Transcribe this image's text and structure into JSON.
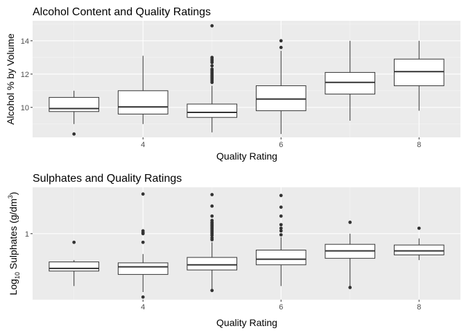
{
  "chart_data": [
    {
      "type": "boxplot",
      "title": "Alcohol Content and Quality Ratings",
      "xlabel": "Quality Rating",
      "ylabel": "Alcohol % by Volume",
      "xlim": [
        2.4,
        8.6
      ],
      "ylim": [
        8.2,
        15.2
      ],
      "x_ticks": [
        4,
        6,
        8
      ],
      "y_ticks": [
        10,
        12,
        14
      ],
      "grid": true,
      "boxes": [
        {
          "x": 3,
          "min": 9.0,
          "q1": 9.75,
          "median": 9.93,
          "q3": 10.6,
          "max": 11.0,
          "outliers": [
            8.4
          ]
        },
        {
          "x": 4,
          "min": 9.0,
          "q1": 9.6,
          "median": 10.03,
          "q3": 11.0,
          "max": 13.1,
          "outliers": []
        },
        {
          "x": 5,
          "min": 8.5,
          "q1": 9.4,
          "median": 9.7,
          "q3": 10.2,
          "max": 11.3,
          "outliers": [
            11.5,
            11.6,
            11.7,
            11.8,
            11.9,
            12.0,
            12.1,
            12.2,
            12.3,
            12.5,
            12.7,
            12.8,
            12.9,
            13.0,
            14.9
          ]
        },
        {
          "x": 6,
          "min": 8.4,
          "q1": 9.8,
          "median": 10.5,
          "q3": 11.3,
          "max": 13.4,
          "outliers": [
            13.6,
            14.0
          ]
        },
        {
          "x": 7,
          "min": 9.2,
          "q1": 10.8,
          "median": 11.5,
          "q3": 12.1,
          "max": 14.0,
          "outliers": []
        },
        {
          "x": 8,
          "min": 9.8,
          "q1": 11.3,
          "median": 12.15,
          "q3": 12.9,
          "max": 14.0,
          "outliers": []
        }
      ]
    },
    {
      "type": "boxplot",
      "title": "Sulphates and Quality Ratings",
      "xlabel": "Quality Rating",
      "ylabel_prefix": "Log",
      "ylabel_sub": "10",
      "ylabel_mid": " Sulphates (g/dm",
      "ylabel_sup": "3",
      "ylabel_suffix": ")",
      "y_scale": "log10",
      "xlim": [
        2.4,
        8.6
      ],
      "ylim": [
        0.315,
        2.25
      ],
      "x_ticks": [
        4,
        6,
        8
      ],
      "y_ticks": [
        1
      ],
      "grid": true,
      "boxes": [
        {
          "x": 3,
          "min": 0.4,
          "q1": 0.52,
          "median": 0.545,
          "q3": 0.61,
          "max": 0.63,
          "outliers": [
            0.86
          ]
        },
        {
          "x": 4,
          "min": 0.36,
          "q1": 0.49,
          "median": 0.56,
          "q3": 0.6,
          "max": 0.7,
          "outliers": [
            0.33,
            0.86,
            1.0,
            1.02,
            1.05,
            2.0
          ]
        },
        {
          "x": 5,
          "min": 0.37,
          "q1": 0.53,
          "median": 0.58,
          "q3": 0.66,
          "max": 0.86,
          "outliers": [
            0.37,
            0.9,
            0.93,
            0.97,
            1.0,
            1.03,
            1.06,
            1.09,
            1.12,
            1.15,
            1.17,
            1.2,
            1.22,
            1.26,
            1.36,
            1.62,
            1.98
          ]
        },
        {
          "x": 6,
          "min": 0.4,
          "q1": 0.58,
          "median": 0.64,
          "q3": 0.75,
          "max": 0.94,
          "outliers": [
            0.98,
            1.05,
            1.1,
            1.17,
            1.36,
            1.59,
            1.95
          ]
        },
        {
          "x": 7,
          "min": 0.39,
          "q1": 0.65,
          "median": 0.74,
          "q3": 0.83,
          "max": 1.0,
          "outliers": [
            0.39,
            1.22
          ]
        },
        {
          "x": 8,
          "min": 0.63,
          "q1": 0.69,
          "median": 0.74,
          "q3": 0.82,
          "max": 0.92,
          "outliers": [
            1.1
          ]
        }
      ]
    }
  ]
}
